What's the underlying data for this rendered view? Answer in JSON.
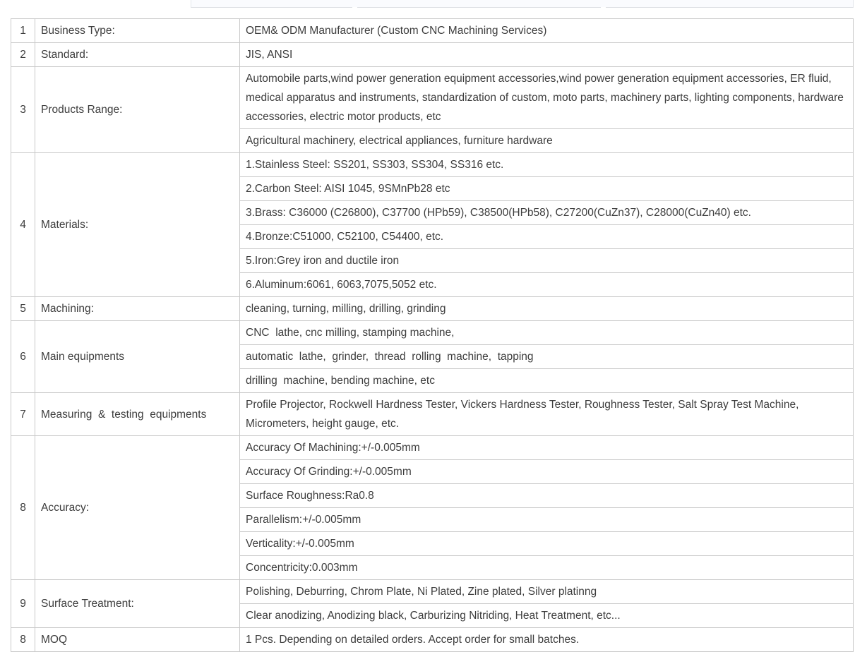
{
  "colors": {
    "border": "#c9c9c9",
    "text": "#3d3d3d",
    "strip_bg": "#fafbfe",
    "strip_border": "#dcdfe4"
  },
  "table": {
    "rows": [
      {
        "num": "1",
        "label": "Business Type:",
        "values": [
          "OEM& ODM Manufacturer (Custom CNC Machining Services)"
        ]
      },
      {
        "num": "2",
        "label": "Standard:",
        "values": [
          "JIS, ANSI"
        ]
      },
      {
        "num": "3",
        "label": "Products Range:",
        "values": [
          "Automobile parts,wind power generation equipment accessories,wind power generation equipment accessories, ER fluid, medical apparatus and instruments, standardization of custom, moto parts, machinery parts, lighting components, hardware accessories, electric motor products, etc",
          "Agricultural machinery, electrical appliances, furniture hardware"
        ]
      },
      {
        "num": "4",
        "label": "Materials:",
        "values": [
          "1.Stainless Steel: SS201, SS303, SS304, SS316 etc.",
          "2.Carbon Steel: AISI 1045, 9SMnPb28 etc",
          "3.Brass: C36000 (C26800), C37700 (HPb59), C38500(HPb58), C27200(CuZn37), C28000(CuZn40) etc.",
          "4.Bronze:C51000, C52100, C54400, etc.",
          "5.Iron:Grey iron and ductile iron",
          "6.Aluminum:6061, 6063,7075,5052 etc."
        ]
      },
      {
        "num": "5",
        "label": "Machining:",
        "values": [
          "cleaning, turning, milling, drilling, grinding"
        ]
      },
      {
        "num": "6",
        "label": "Main equipments",
        "values": [
          "CNC  lathe, cnc milling, stamping machine,",
          "automatic  lathe,  grinder,  thread  rolling  machine,  tapping",
          "drilling  machine, bending machine, etc"
        ]
      },
      {
        "num": "7",
        "label": "Measuring  &  testing  equipments",
        "values": [
          "Profile Projector, Rockwell Hardness Tester, Vickers Hardness Tester, Roughness Tester, Salt Spray Test Machine, Micrometers, height gauge, etc."
        ]
      },
      {
        "num": "8",
        "label": "Accuracy:",
        "values": [
          "Accuracy Of Machining:+/-0.005mm",
          "Accuracy Of Grinding:+/-0.005mm",
          "Surface Roughness:Ra0.8",
          "Parallelism:+/-0.005mm",
          "Verticality:+/-0.005mm",
          "Concentricity:0.003mm"
        ]
      },
      {
        "num": "9",
        "label": "Surface Treatment:",
        "values": [
          "Polishing, Deburring, Chrom Plate, Ni Plated, Zine plated, Silver platinng",
          "Clear anodizing, Anodizing black, Carburizing Nitriding, Heat Treatment, etc..."
        ]
      },
      {
        "num": "8",
        "label": "MOQ",
        "values": [
          "1 Pcs. Depending on detailed orders. Accept order for small batches."
        ]
      }
    ]
  }
}
